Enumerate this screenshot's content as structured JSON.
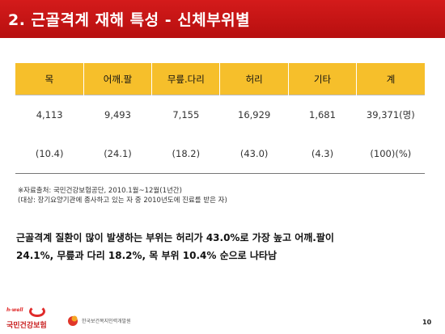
{
  "slide": {
    "title": "2. 근골격계 재해 특성 - 신체부위별",
    "page_number": "10"
  },
  "table": {
    "headers": [
      "목",
      "어깨.팔",
      "무릎.다리",
      "허리",
      "기타",
      "계"
    ],
    "rows": [
      [
        "4,113",
        "9,493",
        "7,155",
        "16,929",
        "1,681",
        "39,371(명)"
      ],
      [
        "(10.4)",
        "(24.1)",
        "(18.2)",
        "(43.0)",
        "(4.3)",
        "(100)(%)"
      ]
    ]
  },
  "source": {
    "line1": "※자료출처: 국민건강보험공단, 2010.1월~12월(1년간)",
    "line2": "(대상: 장기요양기관에 종사하고 있는 자 중 2010년도에 진료를 받은 자)"
  },
  "summary": {
    "line1": "근골격계 질환이 많이 발생하는 부위는 허리가 43.0%로 가장 높고 어깨.팔이",
    "line2": "24.1%, 무릎과 다리 18.2%, 목 부위 10.4% 순으로 나타남"
  },
  "footer": {
    "logo1_tag": "h-well",
    "logo1_text": "국민건강보험",
    "logo2_text": "한국보건복지인력개발원"
  },
  "colors": {
    "title_bar": "#c81414",
    "header_fill": "#f6bf2b",
    "logo_red": "#e02a2a"
  }
}
